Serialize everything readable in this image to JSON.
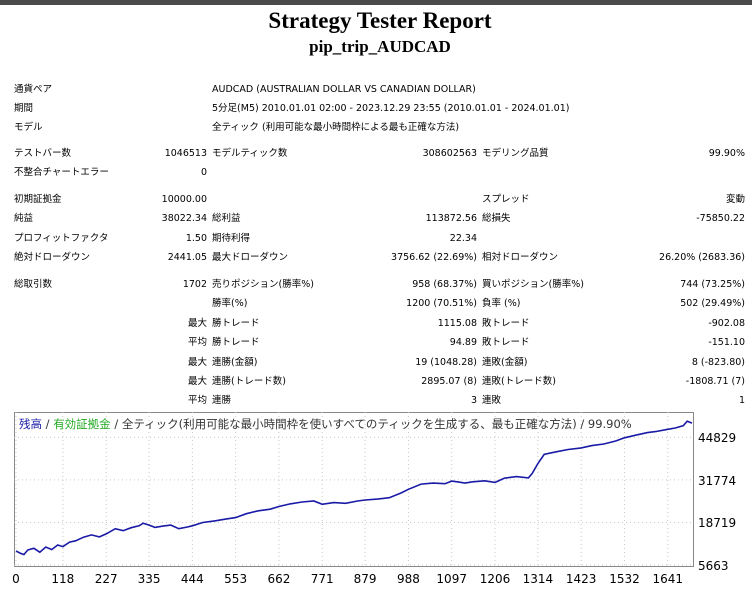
{
  "report": {
    "title": "Strategy Tester Report",
    "subtitle": "pip_trip_AUDCAD"
  },
  "info": {
    "symbol_label": "通貨ペア",
    "symbol_value": "AUDCAD (AUSTRALIAN DOLLAR VS CANADIAN DOLLAR)",
    "period_label": "期間",
    "period_value": "5分足(M5) 2010.01.01 02:00 - 2023.12.29 23:55 (2010.01.01 - 2024.01.01)",
    "model_label": "モデル",
    "model_value": "全ティック (利用可能な最小時間枠による最も正確な方法)"
  },
  "stats": {
    "bars_label": "テストバー数",
    "bars_value": "1046513",
    "ticks_label": "モデルティック数",
    "ticks_value": "308602563",
    "quality_label": "モデリング品質",
    "quality_value": "99.90%",
    "mismatch_label": "不整合チャートエラー",
    "mismatch_value": "0",
    "deposit_label": "初期証拠金",
    "deposit_value": "10000.00",
    "spread_label": "スプレッド",
    "spread_value": "変動",
    "net_label": "純益",
    "net_value": "38022.34",
    "gross_profit_label": "総利益",
    "gross_profit_value": "113872.56",
    "gross_loss_label": "総損失",
    "gross_loss_value": "-75850.22",
    "pf_label": "プロフィットファクタ",
    "pf_value": "1.50",
    "expected_label": "期待利得",
    "expected_value": "22.34",
    "abs_dd_label": "絶対ドローダウン",
    "abs_dd_value": "2441.05",
    "max_dd_label": "最大ドローダウン",
    "max_dd_value": "3756.62 (22.69%)",
    "rel_dd_label": "相対ドローダウン",
    "rel_dd_value": "26.20% (2683.36)",
    "trades_label": "総取引数",
    "trades_value": "1702",
    "short_label": "売りポジション(勝率%)",
    "short_value": "958 (68.37%)",
    "long_label": "買いポジション(勝率%)",
    "long_value": "744 (73.25%)",
    "win_label": "勝率(%)",
    "win_value": "1200 (70.51%)",
    "loss_label": "負率 (%)",
    "loss_value": "502 (29.49%)",
    "max_prefix": "最大",
    "avg_prefix": "平均",
    "max_win_label": "勝トレード",
    "max_win_value": "1115.08",
    "max_loss_label": "敗トレード",
    "max_loss_value": "-902.08",
    "avg_win_label": "勝トレード",
    "avg_win_value": "94.89",
    "avg_loss_label": "敗トレード",
    "avg_loss_value": "-151.10",
    "cons_wins_money_label": "連勝(金額)",
    "cons_wins_money_value": "19 (1048.28)",
    "cons_losses_money_label": "連敗(金額)",
    "cons_losses_money_value": "8 (-823.80)",
    "cons_profit_label": "連勝(トレード数)",
    "cons_profit_value": "2895.07 (8)",
    "cons_loss_label": "連敗(トレード数)",
    "cons_loss_value": "-1808.71 (7)",
    "avg_cons_win_label": "連勝",
    "avg_cons_win_value": "3",
    "avg_cons_loss_label": "連敗",
    "avg_cons_loss_value": "1"
  },
  "legend": {
    "balance": "残高",
    "sep1": " / ",
    "equity": "有効証拠金",
    "sep2": " / ",
    "desc": "全ティック(利用可能な最小時間枠を使いすべてのティックを生成する、最も正確な方法) / 99.90%",
    "balance_color": "#1a1aa6",
    "equity_color": "#22aa22"
  },
  "chart_data": {
    "type": "line",
    "xlim": [
      0,
      1702
    ],
    "ylim": [
      5663,
      52000
    ],
    "x_ticks": [
      0,
      118,
      227,
      335,
      444,
      553,
      662,
      771,
      879,
      988,
      1097,
      1206,
      1314,
      1423,
      1532,
      1641
    ],
    "y_ticks": [
      44829,
      31774,
      18719,
      5663
    ],
    "series": [
      {
        "color": "#1a1aa6",
        "x": [
          0,
          10,
          20,
          30,
          45,
          60,
          75,
          90,
          105,
          118,
          135,
          150,
          170,
          190,
          210,
          227,
          250,
          270,
          290,
          310,
          320,
          335,
          350,
          370,
          390,
          410,
          430,
          444,
          470,
          500,
          530,
          553,
          580,
          610,
          640,
          662,
          690,
          720,
          750,
          771,
          800,
          830,
          860,
          879,
          910,
          940,
          970,
          988,
          1020,
          1050,
          1080,
          1097,
          1115,
          1130,
          1150,
          1180,
          1206,
          1230,
          1260,
          1290,
          1300,
          1314,
          1330,
          1360,
          1390,
          1423,
          1450,
          1480,
          1510,
          1532,
          1560,
          1590,
          1610,
          1641,
          1660,
          1680,
          1690,
          1702
        ],
        "values": [
          10000,
          9300,
          8900,
          10300,
          10800,
          9600,
          11200,
          10400,
          11800,
          11300,
          12700,
          13100,
          14200,
          14900,
          14300,
          15200,
          16800,
          16200,
          17100,
          17700,
          18500,
          17900,
          17200,
          17600,
          17900,
          16800,
          17300,
          17700,
          18700,
          19200,
          19800,
          20200,
          21400,
          22300,
          22800,
          23600,
          24400,
          25000,
          25300,
          24300,
          24800,
          24600,
          25300,
          25600,
          25900,
          26300,
          27800,
          28900,
          30500,
          30800,
          30600,
          31400,
          31100,
          30800,
          31200,
          31500,
          31000,
          32300,
          32800,
          32400,
          33800,
          36800,
          39600,
          40400,
          41100,
          41600,
          42300,
          42800,
          43700,
          44700,
          45500,
          46300,
          46600,
          47300,
          47700,
          48400,
          49800,
          49200
        ]
      }
    ]
  }
}
